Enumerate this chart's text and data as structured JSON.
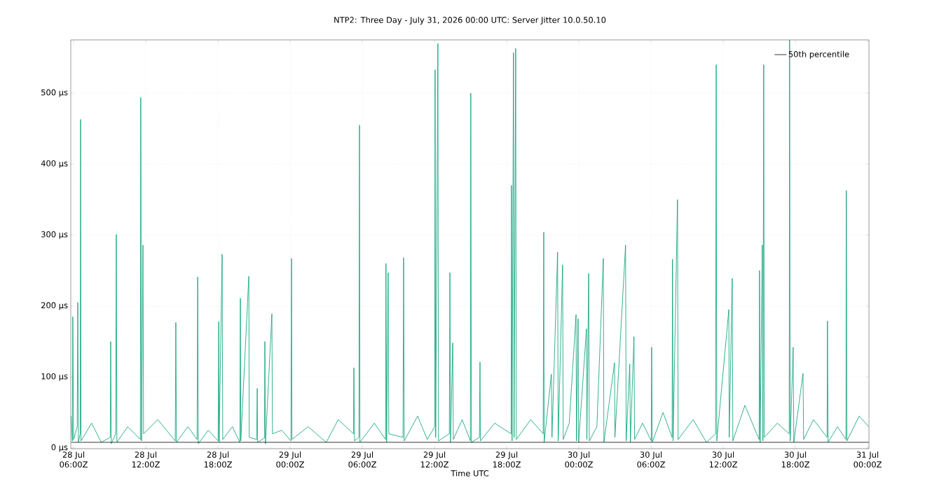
{
  "chart_data": {
    "type": "line",
    "title": "NTP2: Three Day - July 31, 2026 00:00 UTC: Server Jitter 10.0.50.10",
    "xlabel": "Time UTC",
    "xlim": [
      "2026-07-28T05:46",
      "2026-07-31T00:07"
    ],
    "ylim": [
      -1,
      575
    ],
    "xticks": [
      {
        "value": "2026-07-28T06:00",
        "label": "28 Jul 06:00Z"
      },
      {
        "value": "2026-07-28T12:00",
        "label": "28 Jul 12:00Z"
      },
      {
        "value": "2026-07-28T18:00",
        "label": "28 Jul 18:00Z"
      },
      {
        "value": "2026-07-29T00:00",
        "label": "29 Jul 00:00Z"
      },
      {
        "value": "2026-07-29T06:00",
        "label": "29 Jul 06:00Z"
      },
      {
        "value": "2026-07-29T12:00",
        "label": "29 Jul 12:00Z"
      },
      {
        "value": "2026-07-29T18:00",
        "label": "29 Jul 18:00Z"
      },
      {
        "value": "2026-07-30T00:00",
        "label": "30 Jul 00:00Z"
      },
      {
        "value": "2026-07-30T06:00",
        "label": "30 Jul 06:00Z"
      },
      {
        "value": "2026-07-30T12:00",
        "label": "30 Jul 12:00Z"
      },
      {
        "value": "2026-07-30T18:00",
        "label": "30 Jul 18:00Z"
      },
      {
        "value": "2026-07-31T00:00",
        "label": "31 Jul 00:00Z"
      }
    ],
    "yticks": [
      {
        "value": 0,
        "label": "0 µs"
      },
      {
        "value": 100,
        "label": "100 µs"
      },
      {
        "value": 200,
        "label": "200 µs"
      },
      {
        "value": 300,
        "label": "300 µs"
      },
      {
        "value": 400,
        "label": "400 µs"
      },
      {
        "value": 500,
        "label": "500 µs"
      }
    ],
    "grid": true,
    "legend": "top right",
    "series": [
      {
        "color": "#009e73",
        "x": [
          "2026-07-28T05:48",
          "2026-07-28T05:54",
          "2026-07-28T05:56",
          "2026-07-28T06:00",
          "2026-07-28T06:18",
          "2026-07-28T06:21",
          "2026-07-28T06:24",
          "2026-07-28T06:33",
          "2026-07-28T06:35",
          "2026-07-28T06:37",
          "2026-07-28T07:30",
          "2026-07-28T08:18",
          "2026-07-28T09:03",
          "2026-07-28T09:05",
          "2026-07-28T09:08",
          "2026-07-28T09:30",
          "2026-07-28T09:33",
          "2026-07-28T09:36",
          "2026-07-28T10:30",
          "2026-07-28T11:33",
          "2026-07-28T11:35",
          "2026-07-28T11:39",
          "2026-07-28T11:46",
          "2026-07-28T11:49",
          "2026-07-28T13:00",
          "2026-07-28T14:27",
          "2026-07-28T14:30",
          "2026-07-28T14:33",
          "2026-07-28T15:30",
          "2026-07-28T16:16",
          "2026-07-28T16:19",
          "2026-07-28T16:22",
          "2026-07-28T17:12",
          "2026-07-28T18:01",
          "2026-07-28T18:04",
          "2026-07-28T18:06",
          "2026-07-28T18:21",
          "2026-07-28T18:24",
          "2026-07-28T19:12",
          "2026-07-28T19:49",
          "2026-07-28T19:52",
          "2026-07-28T19:54",
          "2026-07-28T20:34",
          "2026-07-28T20:36",
          "2026-07-28T21:13",
          "2026-07-28T21:16",
          "2026-07-28T21:18",
          "2026-07-28T21:52",
          "2026-07-28T21:54",
          "2026-07-28T21:57",
          "2026-07-28T22:29",
          "2026-07-28T22:32",
          "2026-07-28T23:18",
          "2026-07-29T00:04",
          "2026-07-29T00:07",
          "2026-07-29T00:09",
          "2026-07-29T01:30",
          "2026-07-29T03:00",
          "2026-07-29T04:00",
          "2026-07-29T05:16",
          "2026-07-29T05:18",
          "2026-07-29T05:21",
          "2026-07-29T05:43",
          "2026-07-29T05:46",
          "2026-07-29T05:48",
          "2026-07-29T07:00",
          "2026-07-29T07:56",
          "2026-07-29T07:58",
          "2026-07-29T08:01",
          "2026-07-29T08:09",
          "2026-07-29T08:12",
          "2026-07-29T09:23",
          "2026-07-29T09:26",
          "2026-07-29T09:29",
          "2026-07-29T10:36",
          "2026-07-29T11:24",
          "2026-07-29T12:01",
          "2026-07-29T12:03",
          "2026-07-29T12:06",
          "2026-07-29T12:17",
          "2026-07-29T12:20",
          "2026-07-29T13:14",
          "2026-07-29T13:17",
          "2026-07-29T13:20",
          "2026-07-29T13:31",
          "2026-07-29T13:34",
          "2026-07-29T14:18",
          "2026-07-29T14:59",
          "2026-07-29T15:01",
          "2026-07-29T15:04",
          "2026-07-29T15:44",
          "2026-07-29T15:47",
          "2026-07-29T15:49",
          "2026-07-29T17:00",
          "2026-07-29T18:22",
          "2026-07-29T18:24",
          "2026-07-29T18:27",
          "2026-07-29T18:34",
          "2026-07-29T18:37",
          "2026-07-29T18:45",
          "2026-07-29T18:48",
          "2026-07-29T20:00",
          "2026-07-29T21:02",
          "2026-07-29T21:05",
          "2026-07-29T21:07",
          "2026-07-29T21:43",
          "2026-07-29T21:46",
          "2026-07-29T22:14",
          "2026-07-29T22:17",
          "2026-07-29T22:39",
          "2026-07-29T22:42",
          "2026-07-29T23:12",
          "2026-07-29T23:46",
          "2026-07-29T23:48",
          "2026-07-29T23:56",
          "2026-07-29T23:59",
          "2026-07-30T00:38",
          "2026-07-30T00:40",
          "2026-07-30T00:49",
          "2026-07-30T00:52",
          "2026-07-30T01:30",
          "2026-07-30T02:02",
          "2026-07-30T02:05",
          "2026-07-30T02:58",
          "2026-07-30T03:00",
          "2026-07-30T03:53",
          "2026-07-30T03:56",
          "2026-07-30T04:14",
          "2026-07-30T04:17",
          "2026-07-30T04:35",
          "2026-07-30T04:38",
          "2026-07-30T05:18",
          "2026-07-30T06:01",
          "2026-07-30T06:03",
          "2026-07-30T06:06",
          "2026-07-30T07:00",
          "2026-07-30T07:45",
          "2026-07-30T07:47",
          "2026-07-30T07:50",
          "2026-07-30T08:12",
          "2026-07-30T08:15",
          "2026-07-30T09:30",
          "2026-07-30T10:36",
          "2026-07-30T11:22",
          "2026-07-30T11:25",
          "2026-07-30T11:28",
          "2026-07-30T12:28",
          "2026-07-30T12:30",
          "2026-07-30T12:45",
          "2026-07-30T12:48",
          "2026-07-30T13:48",
          "2026-07-30T14:59",
          "2026-07-30T15:01",
          "2026-07-30T15:04",
          "2026-07-30T15:15",
          "2026-07-30T15:18",
          "2026-07-30T15:22",
          "2026-07-30T15:25",
          "2026-07-30T16:30",
          "2026-07-30T17:29",
          "2026-07-30T17:31",
          "2026-07-30T17:34",
          "2026-07-30T17:49",
          "2026-07-30T17:52",
          "2026-07-30T18:38",
          "2026-07-30T18:41",
          "2026-07-30T19:30",
          "2026-07-30T20:38",
          "2026-07-30T20:40",
          "2026-07-30T20:43",
          "2026-07-30T21:30",
          "2026-07-30T22:12",
          "2026-07-30T22:14",
          "2026-07-30T22:17",
          "2026-07-30T23:18",
          "2026-07-31T00:06"
        ],
        "values": [
          45,
          10,
          185,
          12,
          30,
          205,
          8,
          20,
          463,
          10,
          35,
          8,
          15,
          150,
          6,
          20,
          301,
          8,
          30,
          12,
          494,
          10,
          286,
          20,
          40,
          10,
          177,
          8,
          30,
          12,
          241,
          6,
          25,
          10,
          178,
          8,
          273,
          12,
          30,
          8,
          211,
          10,
          242,
          15,
          12,
          84,
          8,
          14,
          150,
          6,
          189,
          20,
          25,
          10,
          267,
          12,
          30,
          8,
          40,
          20,
          113,
          10,
          15,
          455,
          8,
          35,
          12,
          260,
          8,
          247,
          20,
          15,
          268,
          10,
          45,
          12,
          30,
          533,
          15,
          570,
          10,
          20,
          247,
          8,
          148,
          12,
          40,
          10,
          500,
          8,
          15,
          121,
          10,
          35,
          20,
          370,
          10,
          557,
          15,
          563,
          12,
          40,
          20,
          304,
          8,
          104,
          15,
          276,
          10,
          258,
          12,
          35,
          188,
          10,
          182,
          8,
          168,
          12,
          246,
          10,
          30,
          267,
          8,
          120,
          15,
          286,
          10,
          118,
          8,
          157,
          12,
          35,
          10,
          142,
          8,
          50,
          15,
          266,
          10,
          350,
          12,
          40,
          8,
          20,
          540,
          10,
          195,
          15,
          239,
          10,
          60,
          12,
          250,
          8,
          286,
          10,
          540,
          15,
          35,
          20,
          575,
          10,
          142,
          8,
          105,
          12,
          40,
          15,
          179,
          8,
          30,
          12,
          363,
          10,
          45,
          30
        ]
      },
      {
        "name": "50th percentile",
        "color": "#000000",
        "x": [
          "2026-07-28T05:48",
          "2026-07-31T00:06"
        ],
        "values": [
          8,
          8
        ]
      }
    ]
  }
}
